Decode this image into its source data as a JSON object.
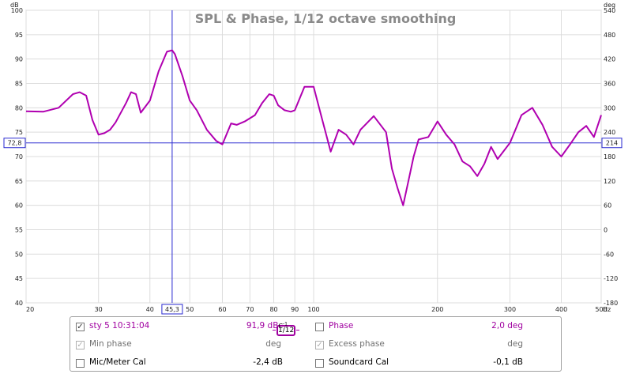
{
  "chart_data": {
    "type": "line",
    "title": "SPL & Phase, 1/12 octave smoothing",
    "left_axis_unit": "dB",
    "right_axis_unit": "deg",
    "x_unit": "Hz",
    "x_scale": "log",
    "xlim": [
      20,
      500
    ],
    "ylim": [
      40,
      100
    ],
    "ylim_right": [
      -180,
      540
    ],
    "x_ticks": [
      "20",
      "30",
      "40",
      "50",
      "60",
      "70",
      "80",
      "90",
      "100",
      "200",
      "300",
      "400",
      "500"
    ],
    "y_ticks": [
      "40",
      "45",
      "50",
      "55",
      "60",
      "65",
      "70",
      "75",
      "80",
      "85",
      "90",
      "95",
      "100"
    ],
    "y_ticks_right": [
      "-180",
      "-120",
      "-60",
      "0",
      "60",
      "120",
      "180",
      "240",
      "300",
      "360",
      "420",
      "480",
      "540"
    ],
    "grid": true,
    "cursor": {
      "x": 45.3,
      "x_label": "45,3",
      "y": 72.8,
      "y_label": "72,8",
      "y_right_label": "214"
    },
    "series": [
      {
        "name": "sty 5 10:31:04",
        "color": "#b000b0",
        "x": [
          20,
          22,
          24,
          26,
          27,
          28,
          29,
          30,
          31,
          32,
          33,
          35,
          36,
          37,
          38,
          40,
          42,
          44,
          45.3,
          46,
          48,
          50,
          52,
          55,
          58,
          60,
          63,
          65,
          68,
          72,
          75,
          78,
          80,
          82,
          85,
          88,
          90,
          95,
          100,
          105,
          110,
          115,
          120,
          125,
          130,
          140,
          150,
          155,
          160,
          165,
          170,
          175,
          180,
          190,
          200,
          210,
          220,
          230,
          240,
          250,
          260,
          270,
          280,
          300,
          320,
          340,
          360,
          380,
          400,
          420,
          440,
          460,
          480,
          500
        ],
        "y": [
          79.3,
          79.2,
          80.0,
          82.8,
          83.2,
          82.5,
          77.5,
          74.5,
          74.8,
          75.5,
          77.0,
          81.0,
          83.2,
          82.8,
          79.0,
          81.5,
          87.5,
          91.5,
          91.8,
          91.0,
          86.5,
          81.5,
          79.5,
          75.5,
          73.2,
          72.5,
          76.8,
          76.5,
          77.2,
          78.5,
          81.0,
          82.8,
          82.5,
          80.5,
          79.5,
          79.2,
          79.5,
          84.3,
          84.3,
          77.5,
          71.0,
          75.5,
          74.5,
          72.5,
          75.5,
          78.3,
          75.0,
          67.5,
          63.5,
          60.0,
          65.0,
          70.0,
          73.5,
          74.0,
          77.2,
          74.5,
          72.5,
          69.0,
          68.0,
          66.0,
          68.5,
          72.0,
          69.5,
          72.8,
          78.5,
          80.0,
          76.5,
          72.0,
          70.0,
          72.5,
          75.0,
          76.3,
          74.0,
          78.5
        ]
      }
    ]
  },
  "legend": {
    "series_name": "sty 5 10:31:04",
    "smoothing": "1/12",
    "spl_value": "91,9 dB",
    "spl_suffix": "C",
    "phase_label": "Phase",
    "phase_value": "2,0 deg",
    "min_phase_label": "Min phase",
    "min_phase_value": "deg",
    "excess_phase_label": "Excess phase",
    "excess_phase_value": "deg",
    "mic_cal_label": "Mic/Meter Cal",
    "mic_cal_value": "-2,4 dB",
    "soundcard_cal_label": "Soundcard Cal",
    "soundcard_cal_value": "-0,1 dB"
  }
}
